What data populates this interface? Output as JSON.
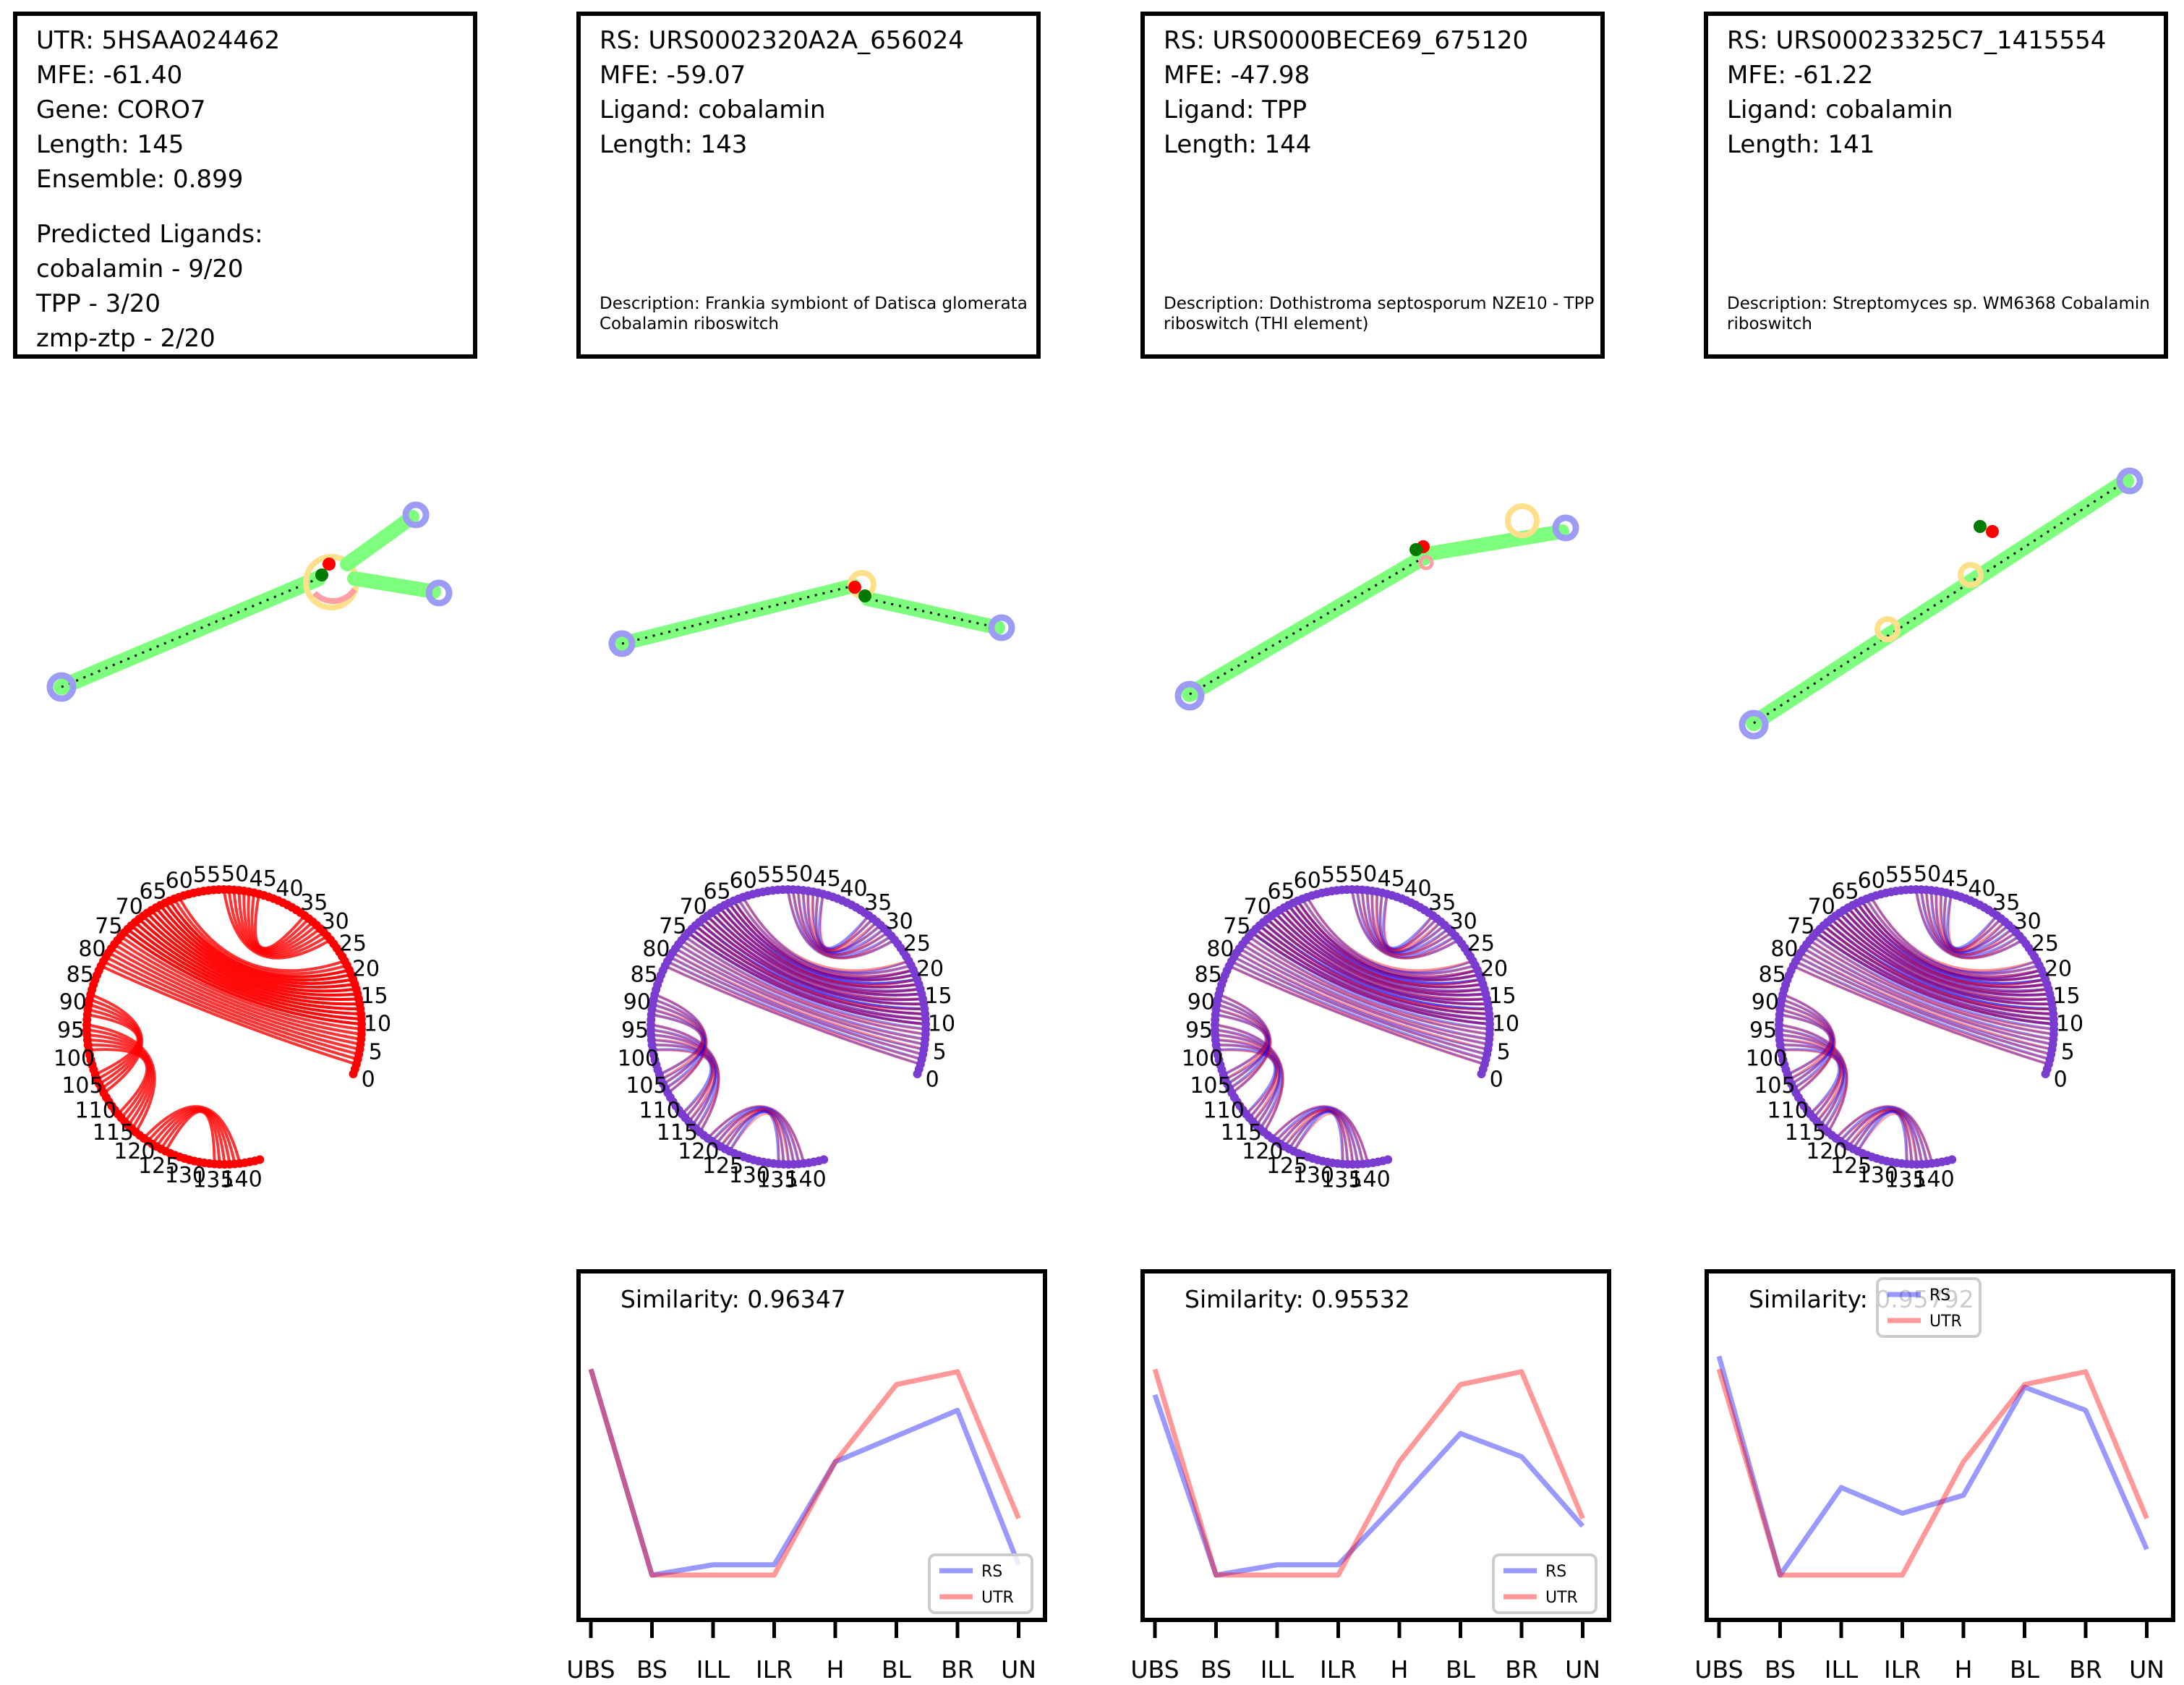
{
  "boxes": [
    {
      "lines": [
        "UTR: 5HSAA024462",
        "MFE: -61.40",
        "Gene: CORO7",
        "Length: 145",
        "Ensemble: 0.899"
      ],
      "extra": [
        "Predicted Ligands:",
        "cobalamin - 9/20",
        "TPP - 3/20",
        "zmp-ztp - 2/20"
      ],
      "description": ""
    },
    {
      "lines": [
        "RS: URS0002320A2A_656024",
        "MFE: -59.07",
        "Ligand: cobalamin",
        "Length: 143"
      ],
      "extra": [],
      "description": "Description: Frankia symbiont of Datisca glomerata Cobalamin riboswitch"
    },
    {
      "lines": [
        "RS: URS0000BECE69_675120",
        "MFE: -47.98",
        "Ligand: TPP",
        "Length: 144"
      ],
      "extra": [],
      "description": "Description: Dothistroma septosporum NZE10 - TPP riboswitch (THI element)"
    },
    {
      "lines": [
        "RS: URS00023325C7_1415554",
        "MFE: -61.22",
        "Ligand: cobalamin",
        "Length: 141"
      ],
      "extra": [],
      "description": "Description: Streptomyces sp. WM6368 Cobalamin riboswitch"
    }
  ],
  "arc_diagram": {
    "tick_labels": [
      "0",
      "5",
      "10",
      "15",
      "20",
      "25",
      "30",
      "35",
      "40",
      "45",
      "50",
      "55",
      "60",
      "65",
      "70",
      "75",
      "80",
      "85",
      "90",
      "95",
      "100",
      "105",
      "110",
      "115",
      "120",
      "125",
      "130",
      "135",
      "140"
    ],
    "colors": {
      "utr": "#ff0000",
      "rs": "#0000ff",
      "node": "#7a3cd0"
    }
  },
  "chart_data": [
    {
      "type": "line",
      "title": "Similarity: 0.96347",
      "categories": [
        "UBS",
        "BS",
        "ILL",
        "ILR",
        "H",
        "BL",
        "BR",
        "UN"
      ],
      "legend": "bottom-right",
      "series": [
        {
          "name": "RS",
          "color": "#0000ff",
          "values": [
            0.8,
            0.0,
            0.04,
            0.04,
            0.44,
            0.54,
            0.64,
            0.04
          ]
        },
        {
          "name": "UTR",
          "color": "#ff0000",
          "values": [
            0.8,
            0.0,
            0.0,
            0.0,
            0.44,
            0.74,
            0.79,
            0.22
          ]
        }
      ]
    },
    {
      "type": "line",
      "title": "Similarity: 0.95532",
      "categories": [
        "UBS",
        "BS",
        "ILL",
        "ILR",
        "H",
        "BL",
        "BR",
        "UN"
      ],
      "legend": "bottom-right",
      "series": [
        {
          "name": "RS",
          "color": "#0000ff",
          "values": [
            0.7,
            0.0,
            0.04,
            0.04,
            0.29,
            0.55,
            0.46,
            0.19
          ]
        },
        {
          "name": "UTR",
          "color": "#ff0000",
          "values": [
            0.8,
            0.0,
            0.0,
            0.0,
            0.44,
            0.74,
            0.79,
            0.22
          ]
        }
      ]
    },
    {
      "type": "line",
      "title": "Similarity: 0.95792",
      "categories": [
        "UBS",
        "BS",
        "ILL",
        "ILR",
        "H",
        "BL",
        "BR",
        "UN"
      ],
      "legend": "top-center",
      "series": [
        {
          "name": "RS",
          "color": "#0000ff",
          "values": [
            0.85,
            0.0,
            0.34,
            0.24,
            0.31,
            0.73,
            0.64,
            0.1
          ]
        },
        {
          "name": "UTR",
          "color": "#ff0000",
          "values": [
            0.8,
            0.0,
            0.0,
            0.0,
            0.44,
            0.74,
            0.79,
            0.22
          ]
        }
      ]
    }
  ]
}
